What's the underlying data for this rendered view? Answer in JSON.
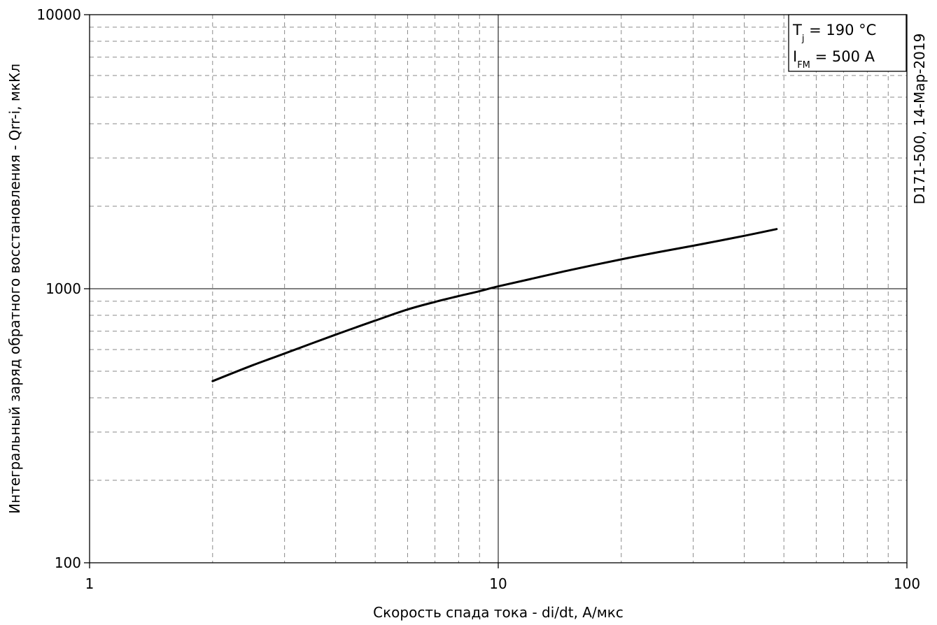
{
  "chart_data": {
    "type": "line",
    "x_scale": "log",
    "y_scale": "log",
    "xlim": [
      1,
      100
    ],
    "ylim": [
      100,
      10000
    ],
    "grid": true,
    "xlabel": "Скорость спада тока - di/dt, А/мкс",
    "ylabel": "Интегральный заряд обратного восстановления - Qrr-i, мкКл",
    "x_ticks": [
      "1",
      "10",
      "100"
    ],
    "y_ticks": [
      "100",
      "1000",
      "10000"
    ],
    "series": [
      {
        "color": "#000000",
        "points": [
          [
            2.0,
            460
          ],
          [
            2.5,
            525
          ],
          [
            3.0,
            580
          ],
          [
            4.0,
            680
          ],
          [
            5.0,
            765
          ],
          [
            6.0,
            840
          ],
          [
            7.0,
            895
          ],
          [
            8.0,
            940
          ],
          [
            9.0,
            980
          ],
          [
            10.0,
            1020
          ],
          [
            12.0,
            1085
          ],
          [
            15.0,
            1170
          ],
          [
            20.0,
            1280
          ],
          [
            25.0,
            1365
          ],
          [
            30.0,
            1435
          ],
          [
            35.0,
            1500
          ],
          [
            40.0,
            1560
          ],
          [
            48.0,
            1650
          ]
        ]
      }
    ],
    "legend": {
      "position": "top-right",
      "line1_main": "T",
      "line1_sub": "j",
      "line1_rest": " = 190 °C",
      "line2_main": "I",
      "line2_sub": "FM",
      "line2_rest": " = 500 A"
    },
    "side_note": "D171-500, 14-Мар-2019"
  }
}
